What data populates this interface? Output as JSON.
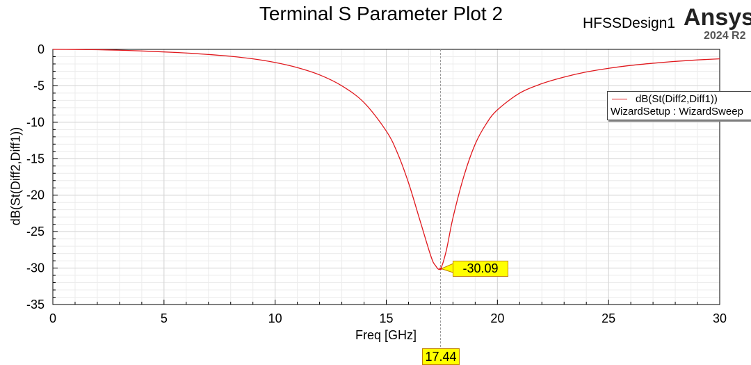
{
  "header": {
    "design_name": "HFSSDesign1",
    "brand": "Ansys",
    "version": "2024 R2"
  },
  "chart_data": {
    "type": "line",
    "title": "Terminal S Parameter Plot 2",
    "xlabel": "Freq [GHz]",
    "ylabel": "dB(St(Diff2,Diff1))",
    "xlim": [
      0,
      30
    ],
    "ylim": [
      -35,
      0
    ],
    "x_ticks": [
      "0",
      "5",
      "10",
      "15",
      "20",
      "25",
      "30"
    ],
    "y_ticks": [
      "0",
      "-5",
      "-10",
      "-15",
      "-20",
      "-25",
      "-30",
      "-35"
    ],
    "grid": true,
    "legend_position": "top-right",
    "series": [
      {
        "name": "dB(St(Diff2,Diff1))",
        "setup": "WizardSetup : WizardSweep",
        "color": "#e0191e",
        "x": [
          0,
          1,
          2,
          3,
          4,
          5,
          6,
          7,
          8,
          9,
          10,
          11,
          12,
          13,
          14,
          15,
          15.5,
          16,
          16.5,
          17,
          17.2,
          17.44,
          17.7,
          18,
          18.5,
          19,
          19.5,
          20,
          21,
          22,
          23,
          24,
          25,
          26,
          27,
          28,
          29,
          30
        ],
        "y": [
          0,
          -0.02,
          -0.05,
          -0.12,
          -0.22,
          -0.35,
          -0.5,
          -0.7,
          -0.95,
          -1.3,
          -1.8,
          -2.5,
          -3.5,
          -5.0,
          -7.3,
          -11.2,
          -14.2,
          -18.3,
          -23.3,
          -28.3,
          -29.6,
          -30.09,
          -27.6,
          -23.1,
          -17.3,
          -13.0,
          -10.2,
          -8.3,
          -6.0,
          -4.7,
          -3.8,
          -3.1,
          -2.6,
          -2.2,
          -1.9,
          -1.65,
          -1.45,
          -1.3
        ]
      }
    ],
    "markers": [
      {
        "x": 17.44,
        "y": -30.09,
        "y_label": "-30.09",
        "x_label": "17.44"
      }
    ]
  }
}
